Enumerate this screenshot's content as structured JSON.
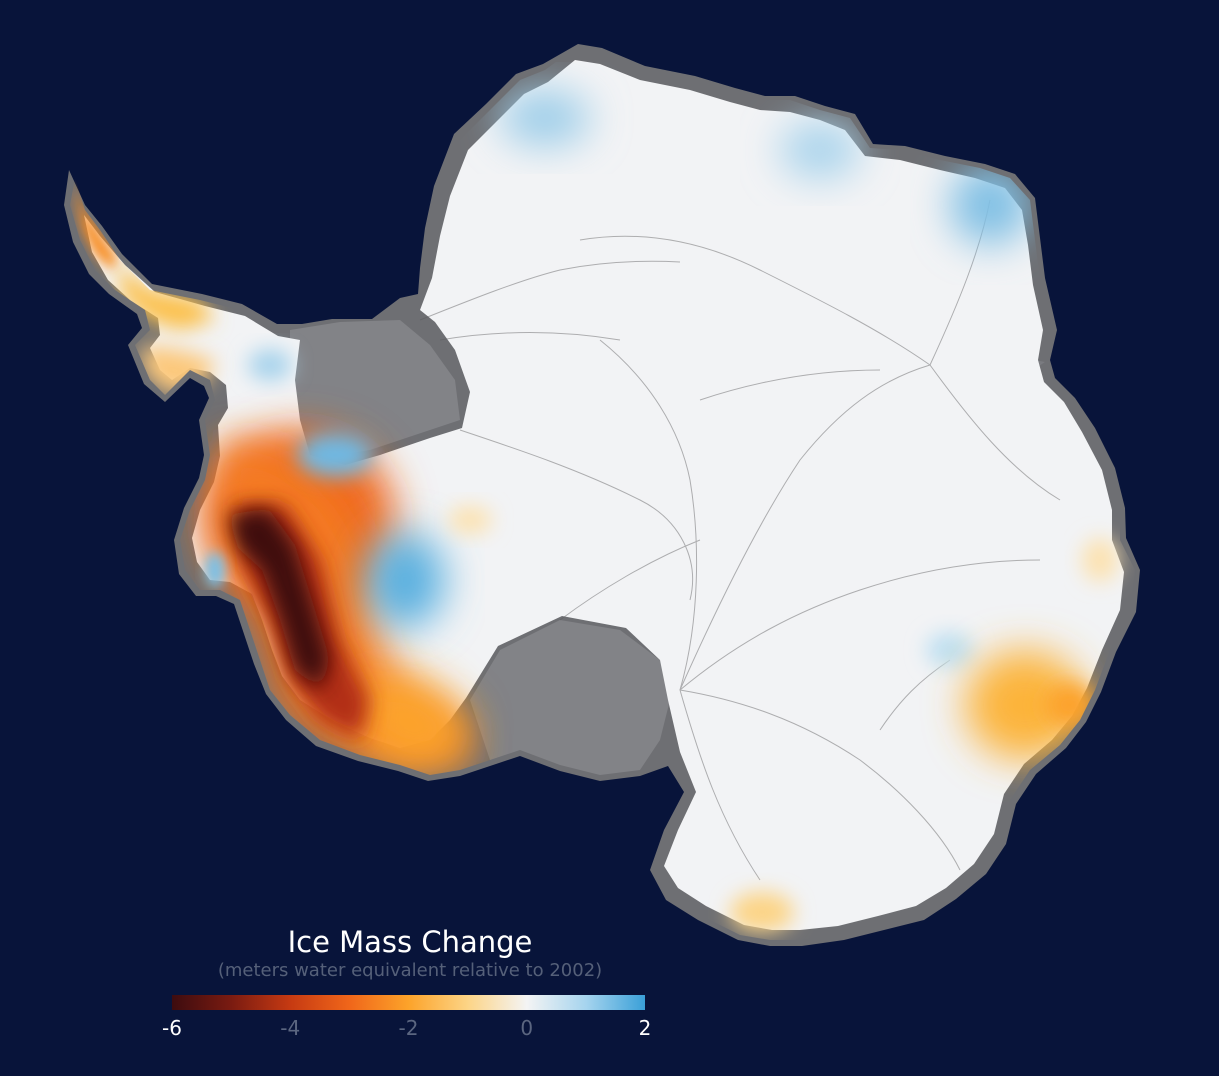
{
  "map": {
    "subject": "Antarctica",
    "background_color": "#08143a",
    "ice_color": "#f3f4f6",
    "ice_shelf_color": "#828387",
    "flowline_color": "#3a3a3a"
  },
  "legend": {
    "title": "Ice Mass Change",
    "subtitle": "(meters water equivalent relative to 2002)",
    "min": -6,
    "max": 2,
    "ticks": [
      {
        "label": "-6",
        "value": -6,
        "emphasis": true
      },
      {
        "label": "-4",
        "value": -4,
        "emphasis": false
      },
      {
        "label": "-2",
        "value": -2,
        "emphasis": false
      },
      {
        "label": "0",
        "value": 0,
        "emphasis": false
      },
      {
        "label": "2",
        "value": 2,
        "emphasis": true
      }
    ],
    "color_stops": [
      {
        "value": -6,
        "color": "#3d0c0f"
      },
      {
        "value": -5,
        "color": "#7a1b11"
      },
      {
        "value": -4,
        "color": "#c63a12"
      },
      {
        "value": -3,
        "color": "#f0661a"
      },
      {
        "value": -2,
        "color": "#fca32a"
      },
      {
        "value": -1,
        "color": "#fcd486"
      },
      {
        "value": 0,
        "color": "#f4f4f4"
      },
      {
        "value": 1,
        "color": "#a6d4ee"
      },
      {
        "value": 2,
        "color": "#3aa0d8"
      }
    ]
  }
}
